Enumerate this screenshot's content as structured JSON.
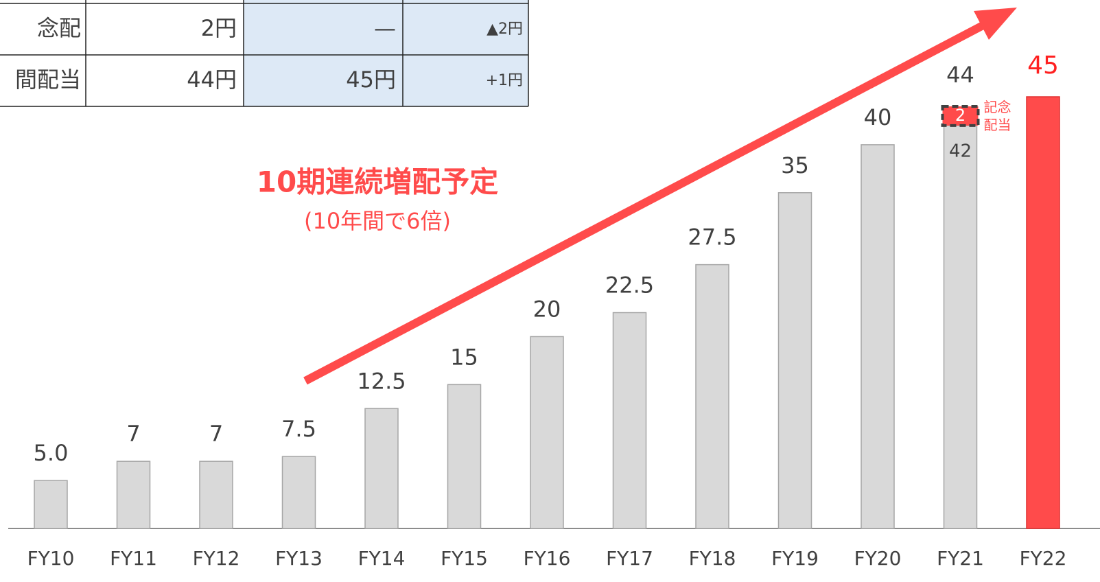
{
  "table": {
    "rows": [
      [
        "念配",
        "2円",
        "—",
        "▲2円"
      ],
      [
        "間配当",
        "44円",
        "45円",
        "+1円"
      ]
    ]
  },
  "chart_data": {
    "type": "bar",
    "title": "10期連続増配予定",
    "subtitle": "(10年間で6倍)",
    "categories": [
      "FY10",
      "FY11",
      "FY12",
      "FY13",
      "FY14",
      "FY15",
      "FY16",
      "FY17",
      "FY18",
      "FY19",
      "FY20",
      "FY21",
      "FY22"
    ],
    "series": [
      {
        "colors": [
          "#d9d9d9",
          "#d9d9d9",
          "#d9d9d9",
          "#d9d9d9",
          "#d9d9d9",
          "#d9d9d9",
          "#d9d9d9",
          "#d9d9d9",
          "#d9d9d9",
          "#d9d9d9",
          "#d9d9d9",
          "#d9d9d9",
          "#ff4b4b"
        ],
        "values": [
          5,
          7,
          7,
          7.5,
          12.5,
          15,
          20,
          22.5,
          27.5,
          35,
          40,
          42,
          45
        ],
        "value_labels": [
          "5.0",
          "7",
          "7",
          "7.5",
          "12.5",
          "15",
          "20",
          "22.5",
          "27.5",
          "35",
          "40",
          "42",
          "45"
        ]
      },
      {
        "color": "#ff4b4b",
        "values": [
          null,
          null,
          null,
          null,
          null,
          null,
          null,
          null,
          null,
          null,
          null,
          2,
          null
        ]
      }
    ],
    "totals": [
      null,
      null,
      null,
      null,
      null,
      null,
      null,
      null,
      null,
      null,
      null,
      44,
      null
    ],
    "annotation": "記念\n配当",
    "ylim": [
      0,
      45
    ]
  }
}
